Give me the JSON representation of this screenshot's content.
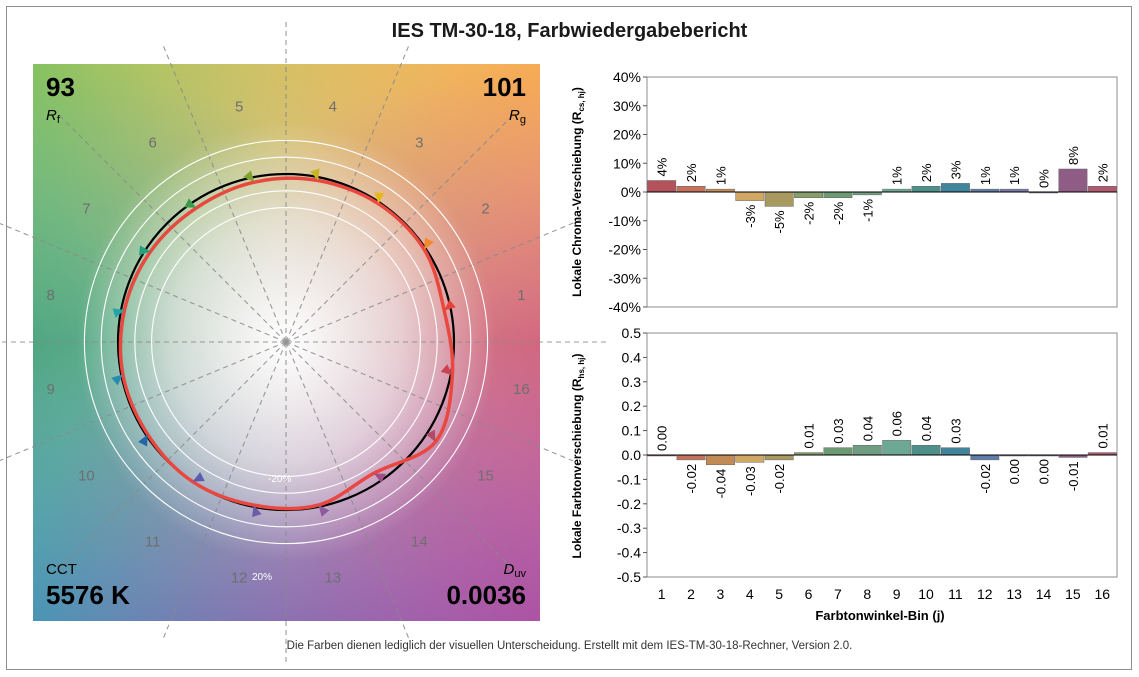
{
  "title": "IES TM-30-18, Farbwiedergabebericht",
  "footer": "Die Farben dienen lediglich der visuellen Unterscheidung. Erstellt mit dem IES-TM-30-18-Rechner, Version 2.0.",
  "metrics": {
    "rf_value": "93",
    "rf_label": "R",
    "rf_sub": "f",
    "rg_value": "101",
    "rg_label": "R",
    "rg_sub": "g",
    "cct_label": "CCT",
    "cct_value": "5576 K",
    "duv_label": "D",
    "duv_sub": "uv",
    "duv_value": "0.0036"
  },
  "chart_data": [
    {
      "type": "polar",
      "name": "color-vector-graphic",
      "bin_labels": [
        "1",
        "2",
        "3",
        "4",
        "5",
        "6",
        "7",
        "8",
        "9",
        "10",
        "11",
        "12",
        "13",
        "14",
        "15",
        "16"
      ],
      "ring_labels": [
        "-20%",
        "20%"
      ],
      "test_radius_factor": [
        0.96,
        0.99,
        0.99,
        0.98,
        0.97,
        0.96,
        0.97,
        0.98,
        0.99,
        0.99,
        1.0,
        0.99,
        0.99,
        0.94,
        1.07,
        1.01
      ],
      "arrow_colors": [
        "#e8413a",
        "#f08a2a",
        "#e6b71f",
        "#c9b424",
        "#7fa32f",
        "#3c9a4a",
        "#22a080",
        "#23a7a6",
        "#2a8ab0",
        "#2566a8",
        "#5a5cae",
        "#6f5aa6",
        "#8d5a9e",
        "#9e4f86",
        "#b14a6a",
        "#c8424f"
      ]
    },
    {
      "type": "bar",
      "name": "chroma-shift",
      "ylabel": "Lokale Chroma-Verschiebung (R",
      "ylabel_sub": "cs, hj",
      "ylabel_end": ")",
      "categories": [
        "1",
        "2",
        "3",
        "4",
        "5",
        "6",
        "7",
        "8",
        "9",
        "10",
        "11",
        "12",
        "13",
        "14",
        "15",
        "16"
      ],
      "values": [
        4,
        2,
        1,
        -3,
        -5,
        -2,
        -2,
        -1,
        1,
        2,
        3,
        1,
        1,
        0,
        8,
        2
      ],
      "value_labels": [
        "4%",
        "2%",
        "1%",
        "-3%",
        "-5%",
        "-2%",
        "-2%",
        "-1%",
        "1%",
        "2%",
        "3%",
        "1%",
        "1%",
        "0%",
        "8%",
        "2%"
      ],
      "ylim": [
        -40,
        40
      ],
      "yticks": [
        "40%",
        "30%",
        "20%",
        "10%",
        "0%",
        "-10%",
        "-20%",
        "-30%",
        "-40%"
      ],
      "bar_colors": [
        "#b3525a",
        "#c4725c",
        "#c28a54",
        "#d1a863",
        "#a89a5f",
        "#869e6b",
        "#6d9a72",
        "#6f9d82",
        "#6ca893",
        "#4f8f8a",
        "#41849b",
        "#5f7ca9",
        "#7a76a6",
        "#8a6a9b",
        "#8f5c85",
        "#b05a6f"
      ]
    },
    {
      "type": "bar",
      "name": "hue-shift",
      "ylabel": "Lokale Farbtonverschiebung (R",
      "ylabel_sub": "hs, hj",
      "ylabel_end": ")",
      "xlabel": "Farbtonwinkel-Bin (j)",
      "categories": [
        "1",
        "2",
        "3",
        "4",
        "5",
        "6",
        "7",
        "8",
        "9",
        "10",
        "11",
        "12",
        "13",
        "14",
        "15",
        "16"
      ],
      "values": [
        0.0,
        -0.02,
        -0.04,
        -0.03,
        -0.02,
        0.01,
        0.03,
        0.04,
        0.06,
        0.04,
        0.03,
        -0.02,
        0.0,
        0.0,
        -0.01,
        0.01
      ],
      "value_labels": [
        "0.00",
        "-0.02",
        "-0.04",
        "-0.03",
        "-0.02",
        "0.01",
        "0.03",
        "0.04",
        "0.06",
        "0.04",
        "0.03",
        "-0.02",
        "0.00",
        "0.00",
        "-0.01",
        "0.01"
      ],
      "ylim": [
        -0.5,
        0.5
      ],
      "yticks": [
        "0.5",
        "0.4",
        "0.3",
        "0.2",
        "0.1",
        "0.0",
        "-0.1",
        "-0.2",
        "-0.3",
        "-0.4",
        "-0.5"
      ],
      "bar_colors": [
        "#b3525a",
        "#c4725c",
        "#c28a54",
        "#d1a863",
        "#a89a5f",
        "#869e6b",
        "#6d9a72",
        "#6f9d82",
        "#6ca893",
        "#4f8f8a",
        "#41849b",
        "#5f7ca9",
        "#7a76a6",
        "#8a6a9b",
        "#8f5c85",
        "#b05a6f"
      ]
    }
  ]
}
